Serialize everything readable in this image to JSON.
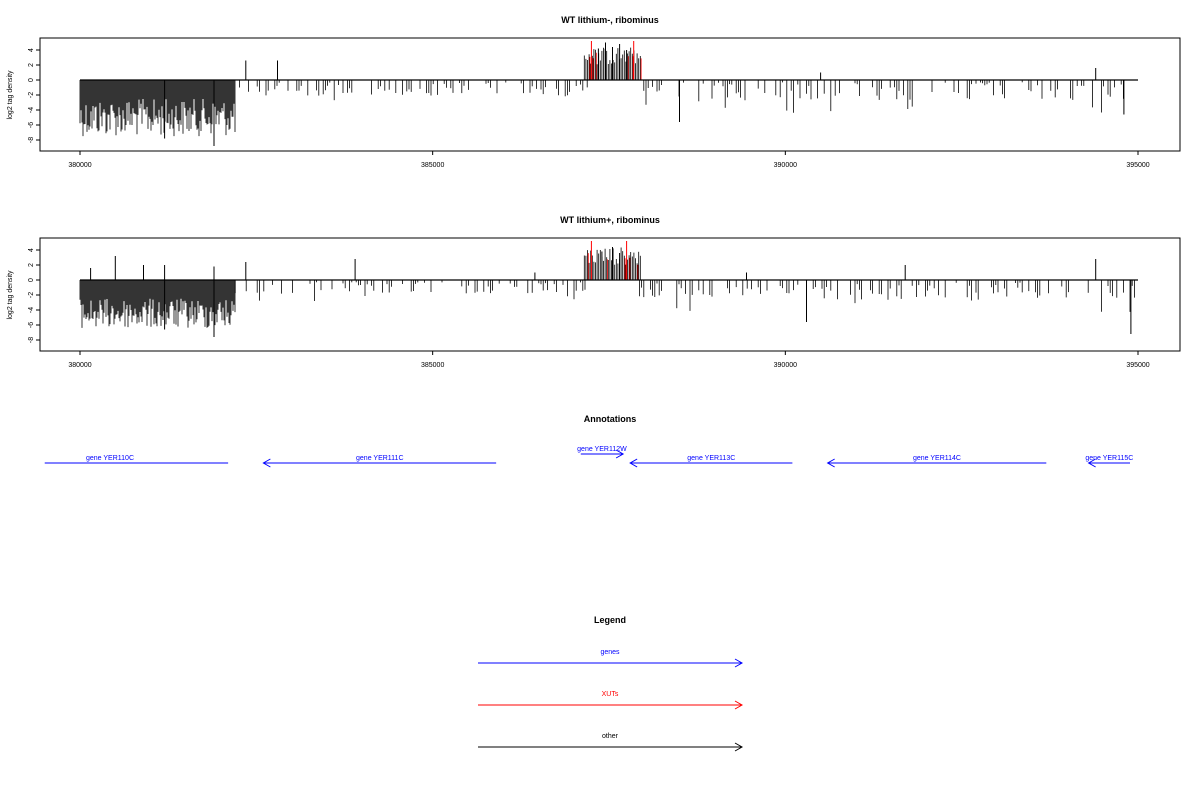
{
  "colors": {
    "gene": "#0000ff",
    "xut": "#ff0000",
    "other": "#000000",
    "signal": "#000000"
  },
  "chart_data": [
    {
      "type": "bar",
      "title": "WT lithium-, ribominus",
      "ylabel": "log2 tag density",
      "xlim": [
        380000,
        395000
      ],
      "ylim": [
        -9,
        5
      ],
      "xticks": [
        "380000",
        "385000",
        "390000",
        "395000"
      ],
      "yticks": [
        "4",
        "2",
        "0",
        "-2",
        "-4",
        "-6",
        "-8"
      ],
      "grid": false,
      "regions": [
        {
          "start": 380000,
          "end": 382200,
          "min": -7.5,
          "max": -2.5
        },
        {
          "start": 382200,
          "end": 387200,
          "min": -3.5,
          "max": -0.5
        },
        {
          "start": 387900,
          "end": 395000,
          "min": -4.5,
          "max": -0.5
        }
      ],
      "positive_peaks": [
        {
          "x": 382350,
          "y": 2.6
        },
        {
          "x": 382800,
          "y": 2.6
        },
        {
          "x": 387250,
          "y": 5.2,
          "xut": true
        },
        {
          "x": 387350,
          "y": 4.2
        },
        {
          "x": 387450,
          "y": 5.0
        },
        {
          "x": 387550,
          "y": 4.4
        },
        {
          "x": 387650,
          "y": 4.8
        },
        {
          "x": 387750,
          "y": 4.0
        },
        {
          "x": 387850,
          "y": 5.2,
          "xut": true
        },
        {
          "x": 390500,
          "y": 1.0
        },
        {
          "x": 394400,
          "y": 1.6
        }
      ],
      "negative_peaks": [
        {
          "x": 381900,
          "y": -8.8
        },
        {
          "x": 381200,
          "y": -7.8
        },
        {
          "x": 388500,
          "y": -5.6
        },
        {
          "x": 394800,
          "y": -4.6
        }
      ]
    },
    {
      "type": "bar",
      "title": "WT lithium+, ribominus",
      "ylabel": "log2 tag density",
      "xlim": [
        380000,
        395000
      ],
      "ylim": [
        -9,
        5
      ],
      "xticks": [
        "380000",
        "385000",
        "390000",
        "395000"
      ],
      "yticks": [
        "4",
        "2",
        "0",
        "-2",
        "-4",
        "-6",
        "-8"
      ],
      "grid": false,
      "regions": [
        {
          "start": 380000,
          "end": 382200,
          "min": -6.5,
          "max": -2.5
        },
        {
          "start": 382200,
          "end": 387200,
          "min": -3.0,
          "max": -0.5
        },
        {
          "start": 387900,
          "end": 395000,
          "min": -4.5,
          "max": -0.5
        }
      ],
      "positive_peaks": [
        {
          "x": 380150,
          "y": 1.6
        },
        {
          "x": 380500,
          "y": 3.2
        },
        {
          "x": 380900,
          "y": 2.0
        },
        {
          "x": 381200,
          "y": 2.0
        },
        {
          "x": 381900,
          "y": 1.8
        },
        {
          "x": 382350,
          "y": 2.4
        },
        {
          "x": 383900,
          "y": 2.8
        },
        {
          "x": 386450,
          "y": 1.0
        },
        {
          "x": 387250,
          "y": 5.2,
          "xut": true
        },
        {
          "x": 387400,
          "y": 3.8
        },
        {
          "x": 387550,
          "y": 4.4
        },
        {
          "x": 387650,
          "y": 3.6
        },
        {
          "x": 387750,
          "y": 5.2,
          "xut": true
        },
        {
          "x": 389450,
          "y": 1.0
        },
        {
          "x": 391700,
          "y": 2.0
        },
        {
          "x": 394400,
          "y": 2.8
        }
      ],
      "negative_peaks": [
        {
          "x": 381900,
          "y": -7.6
        },
        {
          "x": 381200,
          "y": -6.6
        },
        {
          "x": 390300,
          "y": -5.6
        },
        {
          "x": 394900,
          "y": -7.2
        }
      ]
    }
  ],
  "annotations": {
    "title": "Annotations",
    "genes": [
      {
        "label": "gene YER110C",
        "start": 379500,
        "end": 382100,
        "strand": "-"
      },
      {
        "label": "gene YER111C",
        "start": 382600,
        "end": 385900,
        "strand": "-"
      },
      {
        "label": "gene YER112W",
        "start": 387100,
        "end": 387700,
        "strand": "+"
      },
      {
        "label": "gene YER113C",
        "start": 387800,
        "end": 390100,
        "strand": "-"
      },
      {
        "label": "gene YER114C",
        "start": 390600,
        "end": 393700,
        "strand": "-"
      },
      {
        "label": "gene YER115C",
        "start": 394300,
        "end": 394900,
        "strand": "-"
      }
    ]
  },
  "legend": {
    "title": "Legend",
    "items": [
      {
        "label": "genes",
        "color": "#0000ff"
      },
      {
        "label": "XUTs",
        "color": "#ff0000"
      },
      {
        "label": "other",
        "color": "#000000"
      }
    ]
  }
}
